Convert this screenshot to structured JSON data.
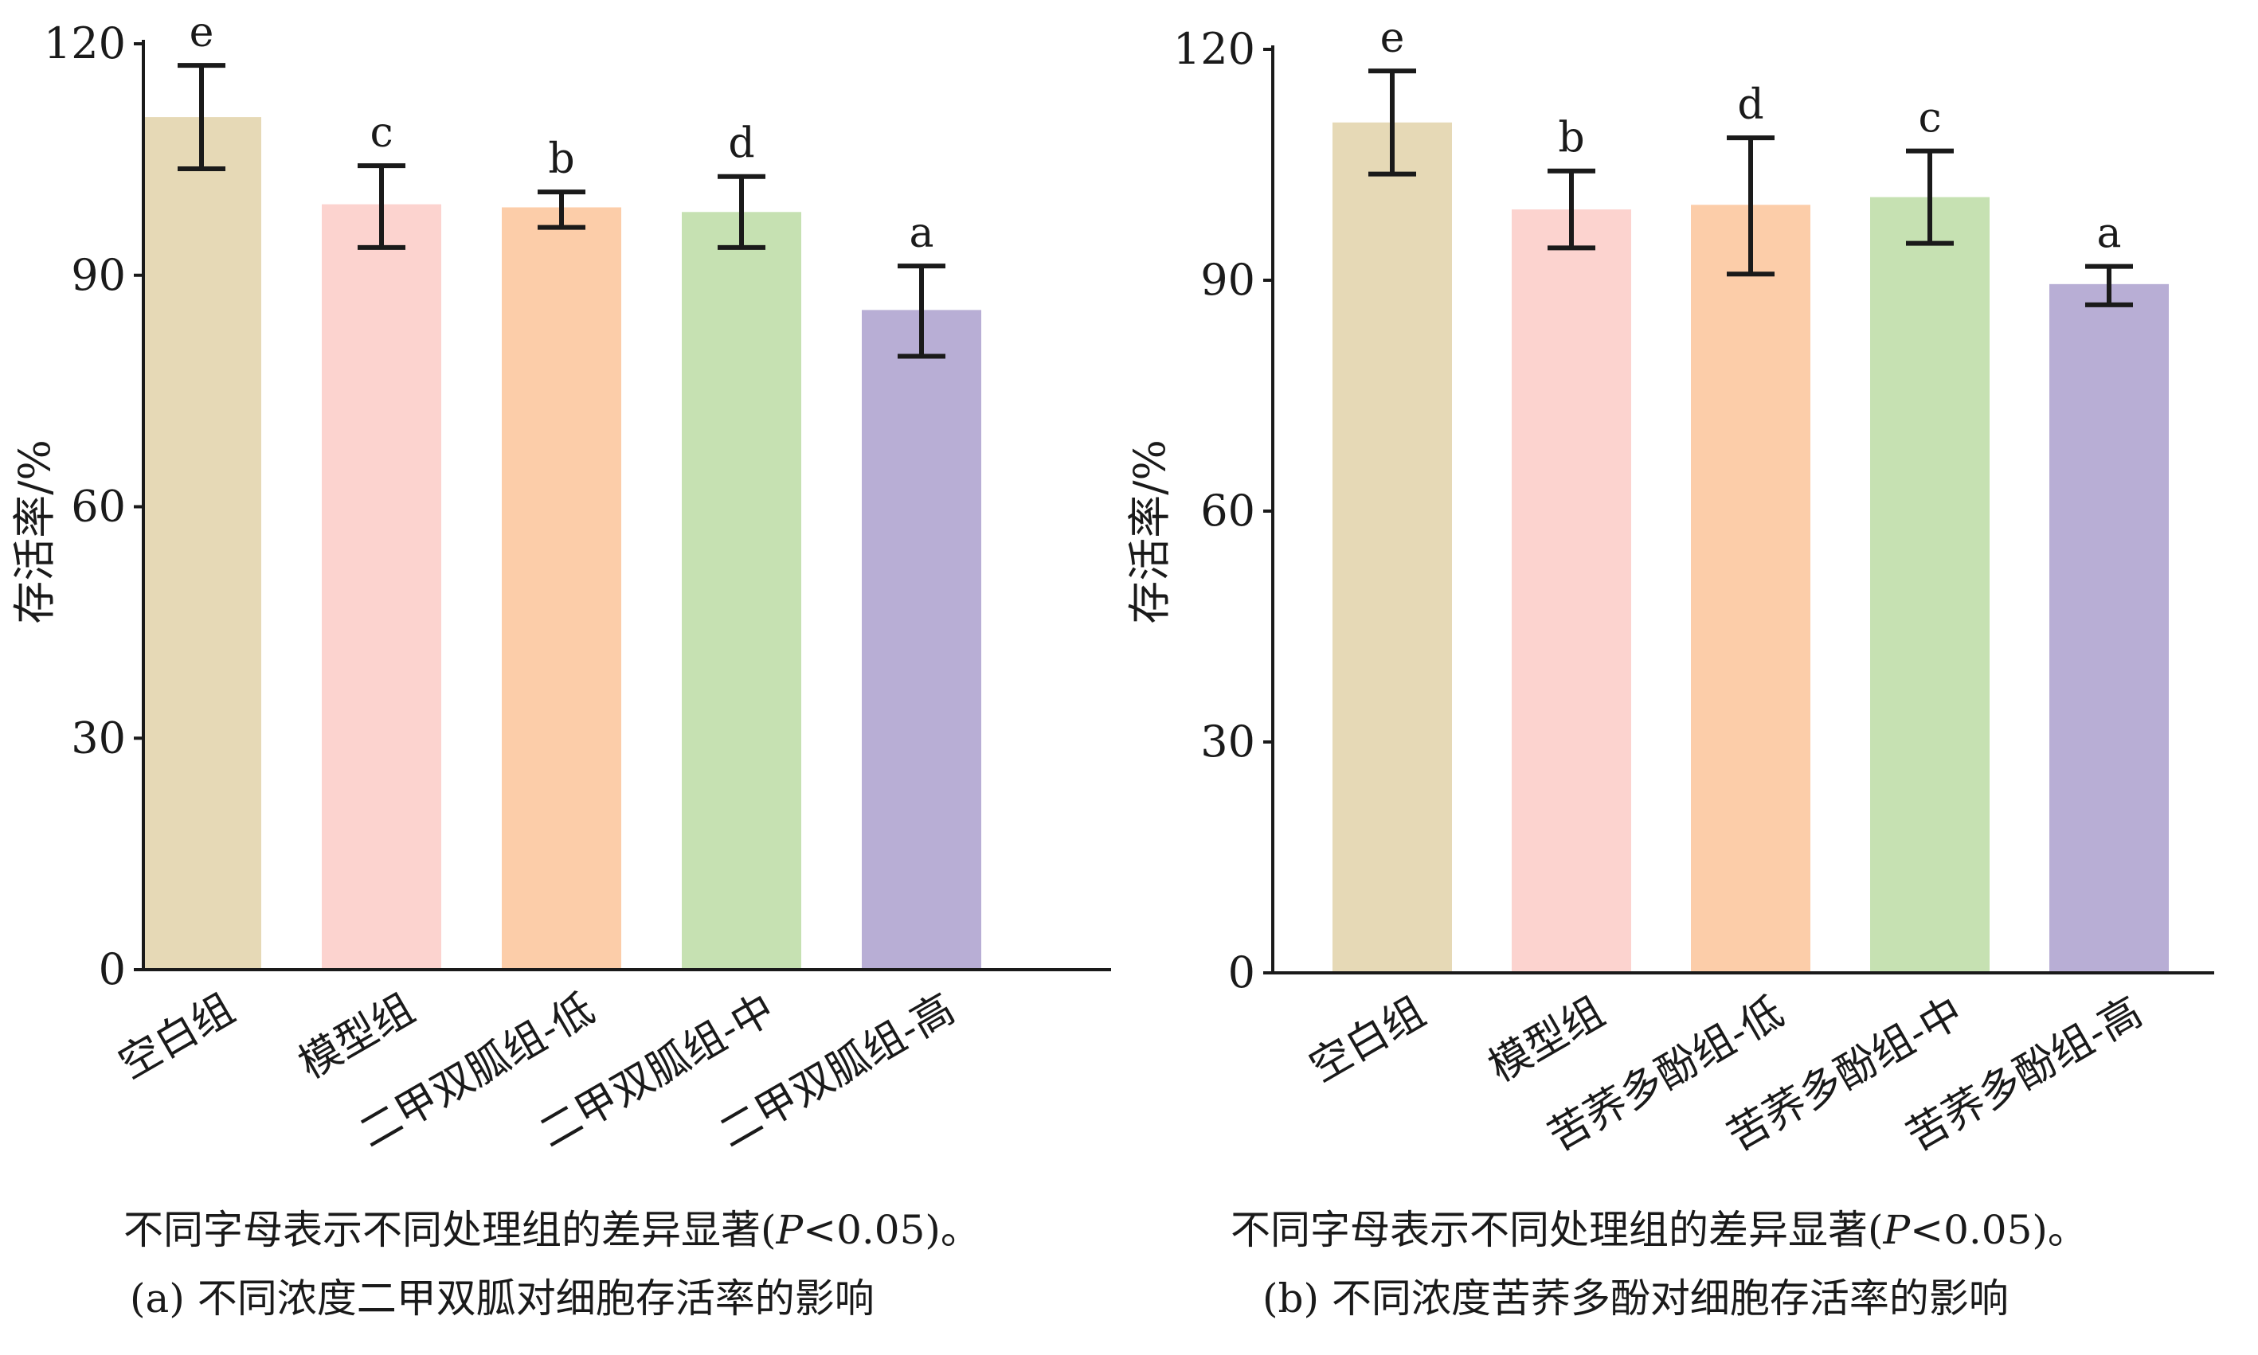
{
  "chart_data": [
    {
      "type": "bar",
      "caption": "(a) 不同浓度二甲双胍对细胞存活率的影响",
      "note": {
        "prefix": "不同字母表示不同处理组的差异显著(",
        "italic": "P",
        "suffix": "<0.05)。"
      },
      "ylabel": "存活率/%",
      "ylim": [
        0,
        120
      ],
      "yticks": [
        0,
        30,
        60,
        90,
        120
      ],
      "categories": [
        "空白组",
        "模型组",
        "二甲双胍组-低",
        "二甲双胍组-中",
        "二甲双胍组-高"
      ],
      "values": [
        110.5,
        99.2,
        98.8,
        98.2,
        85.5
      ],
      "error_low": [
        103.8,
        93.6,
        96.2,
        93.6,
        79.5
      ],
      "error_high": [
        117.2,
        104.2,
        100.8,
        102.8,
        91.2
      ],
      "significance": [
        "e",
        "c",
        "b",
        "d",
        "a"
      ],
      "colors": [
        "#e6d9b6",
        "#fcd3cf",
        "#fccda9",
        "#c6e1b2",
        "#b8aed5"
      ]
    },
    {
      "type": "bar",
      "caption": "(b) 不同浓度苦荞多酚对细胞存活率的影响",
      "note": {
        "prefix": "不同字母表示不同处理组的差异显著(",
        "italic": "P",
        "suffix": "<0.05)。"
      },
      "ylabel": "存活率/%",
      "ylim": [
        0,
        120
      ],
      "yticks": [
        0,
        30,
        60,
        90,
        120
      ],
      "categories": [
        "空白组",
        "模型组",
        "苦荞多酚组-低",
        "苦荞多酚组-中",
        "苦荞多酚组-高"
      ],
      "values": [
        110.5,
        99.2,
        99.8,
        100.8,
        89.5
      ],
      "error_low": [
        103.8,
        94.2,
        90.8,
        94.8,
        86.8
      ],
      "error_high": [
        117.2,
        104.2,
        108.5,
        106.8,
        91.8
      ],
      "significance": [
        "e",
        "b",
        "d",
        "c",
        "a"
      ],
      "colors": [
        "#e6d9b6",
        "#fcd3cf",
        "#fccda9",
        "#c6e1b2",
        "#b8aed5"
      ]
    }
  ]
}
